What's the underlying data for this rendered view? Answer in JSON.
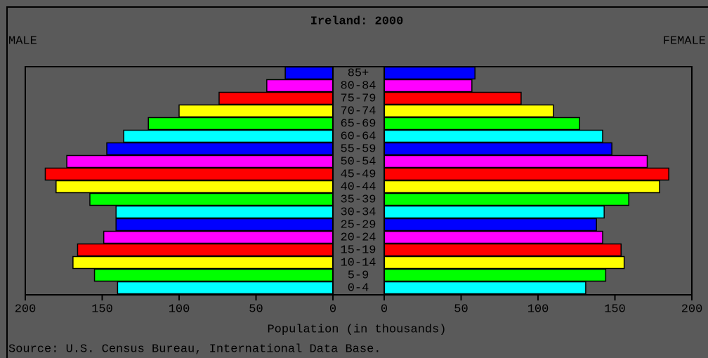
{
  "chart_data": {
    "type": "pyramid",
    "title": "Ireland: 2000",
    "xlabel": "Population (in thousands)",
    "source": "Source: U.S. Census Bureau, International Data Base.",
    "categories": [
      "85+",
      "80-84",
      "75-79",
      "70-74",
      "65-69",
      "60-64",
      "55-59",
      "50-54",
      "45-49",
      "40-44",
      "35-39",
      "30-34",
      "25-29",
      "20-24",
      "15-19",
      "10-14",
      "5-9",
      "0-4"
    ],
    "colors": [
      "#0000ff",
      "#ff00ff",
      "#ff0000",
      "#ffff00",
      "#00ff00",
      "#00ffff",
      "#0000ff",
      "#ff00ff",
      "#ff0000",
      "#ffff00",
      "#00ff00",
      "#00ffff",
      "#0000ff",
      "#ff00ff",
      "#ff0000",
      "#ffff00",
      "#00ff00",
      "#00ffff"
    ],
    "series": [
      {
        "name": "MALE",
        "values": [
          31,
          43,
          74,
          100,
          120,
          136,
          147,
          173,
          187,
          180,
          158,
          141,
          141,
          149,
          166,
          169,
          155,
          140
        ]
      },
      {
        "name": "FEMALE",
        "values": [
          59,
          57,
          89,
          110,
          127,
          142,
          148,
          171,
          185,
          179,
          159,
          143,
          138,
          142,
          154,
          156,
          144,
          131
        ]
      }
    ],
    "xlim": [
      0,
      200
    ],
    "xticks": [
      0,
      50,
      100,
      150,
      200
    ]
  }
}
